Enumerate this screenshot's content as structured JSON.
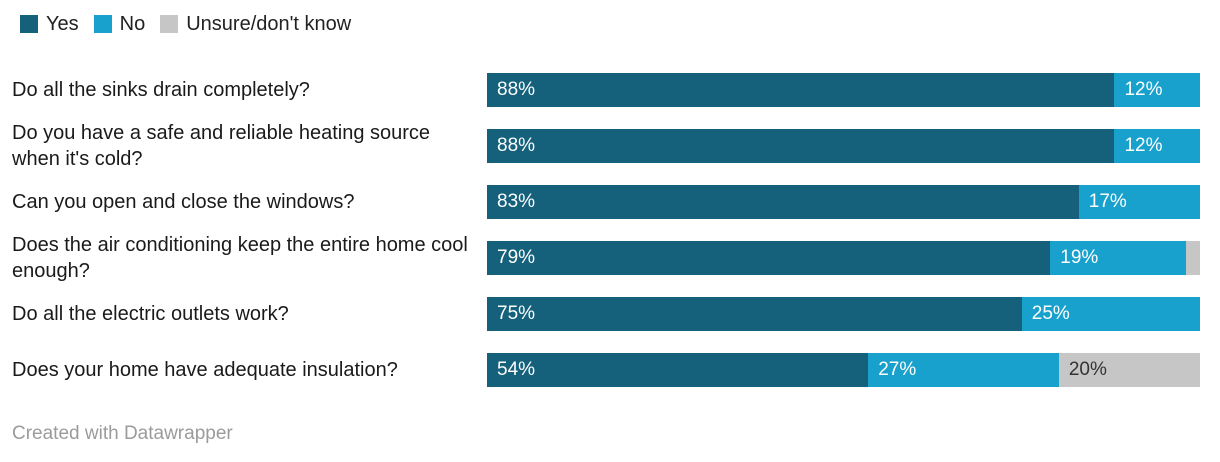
{
  "legend": {
    "items": [
      {
        "label": "Yes",
        "color": "#15607a"
      },
      {
        "label": "No",
        "color": "#18a1cd"
      },
      {
        "label": "Unsure/don't know",
        "color": "#c6c6c6"
      }
    ]
  },
  "chart_data": {
    "type": "bar",
    "subtype": "stacked-horizontal",
    "title": "",
    "xlabel": "",
    "ylabel": "",
    "value_format": "percent",
    "axis_range": [
      0,
      100
    ],
    "grid": false,
    "legend_position": "top-left",
    "label_min_value": 3,
    "categories": [
      "Do all the sinks drain completely?",
      "Do you have a safe and reliable heating source when it's cold?",
      "Can you open and close the windows?",
      "Does the air conditioning keep the entire home cool enough?",
      "Do all the electric outlets work?",
      "Does your home have adequate insulation?"
    ],
    "series": [
      {
        "name": "Yes",
        "color": "#15607a",
        "text_color": "#ffffff",
        "values": [
          88,
          88,
          83,
          79,
          75,
          54
        ]
      },
      {
        "name": "No",
        "color": "#18a1cd",
        "text_color": "#ffffff",
        "values": [
          12,
          12,
          17,
          19,
          25,
          27
        ]
      },
      {
        "name": "Unsure/don't know",
        "color": "#c6c6c6",
        "text_color": "#333333",
        "values": [
          0,
          0,
          0,
          2,
          0,
          20
        ]
      }
    ]
  },
  "footer": {
    "attribution": "Created with Datawrapper"
  }
}
